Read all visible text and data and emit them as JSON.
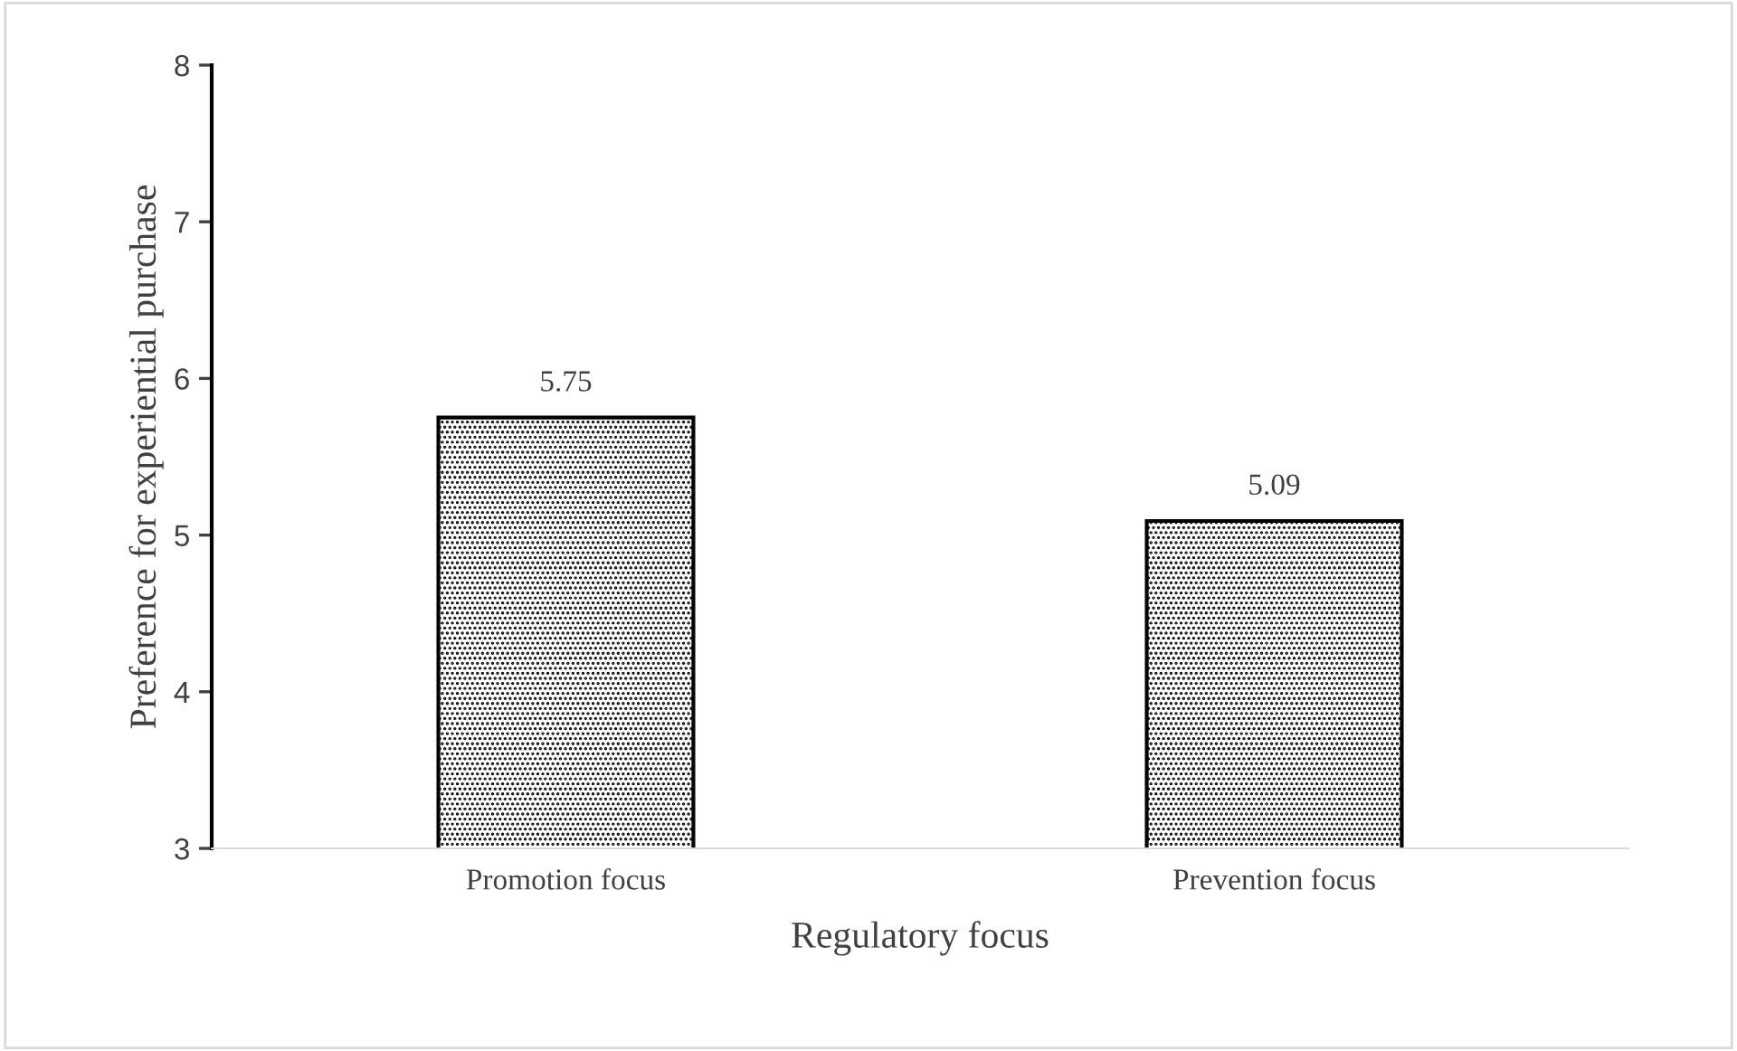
{
  "chart_data": {
    "type": "bar",
    "xlabel": "Regulatory focus",
    "ylabel": "Preference for experiential purchase",
    "categories": [
      "Promotion focus",
      "Prevention focus"
    ],
    "values": [
      5.75,
      5.09
    ],
    "color": "#000000",
    "ylim": [
      3,
      8
    ],
    "yticks": [
      3,
      4,
      5,
      6,
      7,
      8
    ],
    "grid": false,
    "data_labels": true
  }
}
